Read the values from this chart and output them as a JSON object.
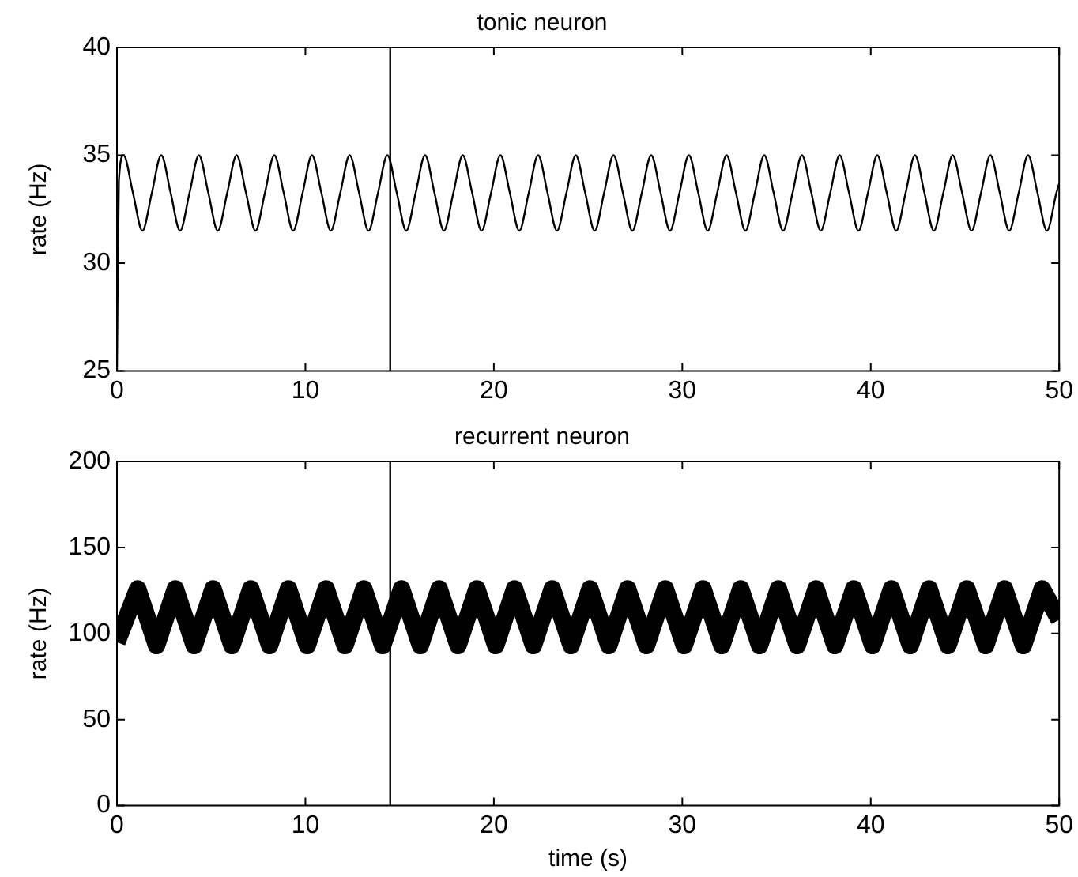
{
  "chart_data": [
    {
      "type": "line",
      "title": "tonic neuron",
      "ylabel": "rate (Hz)",
      "xlim": [
        0,
        50
      ],
      "xticks": [
        0,
        10,
        20,
        30,
        40,
        50
      ],
      "ylim": [
        25,
        40
      ],
      "yticks": [
        25,
        30,
        35,
        40
      ],
      "grid": false,
      "legend": false,
      "marker": "none",
      "line_style": "solid",
      "ref_lines": [
        {
          "axis": "x",
          "value": 14.5,
          "color": "#000000"
        }
      ],
      "series": [
        {
          "color": "#000000",
          "x": [
            0,
            0.1,
            0.35,
            0.85,
            1.35,
            1.85,
            2.35,
            2.85,
            3.35,
            3.85,
            4.35,
            4.85,
            5.35,
            5.85,
            6.35,
            6.85,
            7.35,
            7.85,
            8.35,
            8.85,
            9.35,
            9.85,
            10.35,
            10.85,
            11.35,
            11.85,
            12.35,
            12.85,
            13.35,
            13.85,
            14.35,
            14.85,
            15.35,
            15.85,
            16.35,
            16.85,
            17.35,
            17.85,
            18.35,
            18.85,
            19.35,
            19.85,
            20.35,
            20.85,
            21.35,
            21.85,
            22.35,
            22.85,
            23.35,
            23.85,
            24.35,
            24.85,
            25.35,
            25.85,
            26.35,
            26.85,
            27.35,
            27.85,
            28.35,
            28.85,
            29.35,
            29.85,
            30.35,
            30.85,
            31.35,
            31.85,
            32.35,
            32.85,
            33.35,
            33.85,
            34.35,
            34.85,
            35.35,
            35.85,
            36.35,
            36.85,
            37.35,
            37.85,
            38.35,
            38.85,
            39.35,
            39.85,
            40.35,
            40.85,
            41.35,
            41.85,
            42.35,
            42.85,
            43.35,
            43.85,
            44.35,
            44.85,
            45.35,
            45.85,
            46.35,
            46.85,
            47.35,
            47.85,
            48.35,
            48.85,
            49.35,
            49.85,
            50
          ],
          "values": [
            25,
            33.8,
            35,
            33.25,
            31.5,
            33.25,
            35,
            33.25,
            31.5,
            33.25,
            35,
            33.25,
            31.5,
            33.25,
            35,
            33.25,
            31.5,
            33.25,
            35,
            33.25,
            31.5,
            33.25,
            35,
            33.25,
            31.5,
            33.25,
            35,
            33.25,
            31.5,
            33.25,
            35,
            33.25,
            31.5,
            33.25,
            35,
            33.25,
            31.5,
            33.25,
            35,
            33.25,
            31.5,
            33.25,
            35,
            33.25,
            31.5,
            33.25,
            35,
            33.25,
            31.5,
            33.25,
            35,
            33.25,
            31.5,
            33.25,
            35,
            33.25,
            31.5,
            33.25,
            35,
            33.25,
            31.5,
            33.25,
            35,
            33.25,
            31.5,
            33.25,
            35,
            33.25,
            31.5,
            33.25,
            35,
            33.25,
            31.5,
            33.25,
            35,
            33.25,
            31.5,
            33.25,
            35,
            33.25,
            31.5,
            33.25,
            35,
            33.25,
            31.5,
            33.25,
            35,
            33.25,
            31.5,
            33.25,
            35,
            33.25,
            31.5,
            33.25,
            35,
            33.25,
            31.5,
            33.25,
            35,
            33.25,
            31.5,
            33.25,
            33.7
          ]
        }
      ]
    },
    {
      "type": "line",
      "title": "recurrent neuron",
      "xlabel": "time (s)",
      "ylabel": "rate (Hz)",
      "xlim": [
        0,
        50
      ],
      "xticks": [
        0,
        10,
        20,
        30,
        40,
        50
      ],
      "ylim": [
        0,
        200
      ],
      "yticks": [
        0,
        50,
        100,
        150,
        200
      ],
      "grid": false,
      "legend": false,
      "marker": "none",
      "line_style": "solid",
      "ref_lines": [
        {
          "axis": "x",
          "value": 14.5,
          "color": "#000000"
        }
      ],
      "series": [
        {
          "color": "#000000",
          "x": [
            0,
            1.1,
            2.1,
            3.1,
            4.1,
            5.1,
            6.1,
            7.1,
            8.1,
            9.1,
            10.1,
            11.1,
            12.1,
            13.1,
            14.1,
            15.1,
            16.1,
            17.1,
            18.1,
            19.1,
            20.1,
            21.1,
            22.1,
            23.1,
            24.1,
            25.1,
            26.1,
            27.1,
            28.1,
            29.1,
            30.1,
            31.1,
            32.1,
            33.1,
            34.1,
            35.1,
            36.1,
            37.1,
            38.1,
            39.1,
            40.1,
            41.1,
            42.1,
            43.1,
            44.1,
            45.1,
            46.1,
            47.1,
            48.1,
            49.1,
            50
          ],
          "values": [
            95,
            126,
            93,
            126,
            93,
            126,
            93,
            126,
            93,
            126,
            93,
            126,
            93,
            126,
            93,
            126,
            93,
            126,
            93,
            126,
            93,
            126,
            93,
            126,
            93,
            126,
            93,
            126,
            93,
            126,
            93,
            126,
            93,
            126,
            93,
            126,
            93,
            126,
            93,
            126,
            93,
            126,
            93,
            126,
            93,
            126,
            93,
            126,
            93,
            126,
            108
          ]
        }
      ]
    }
  ]
}
